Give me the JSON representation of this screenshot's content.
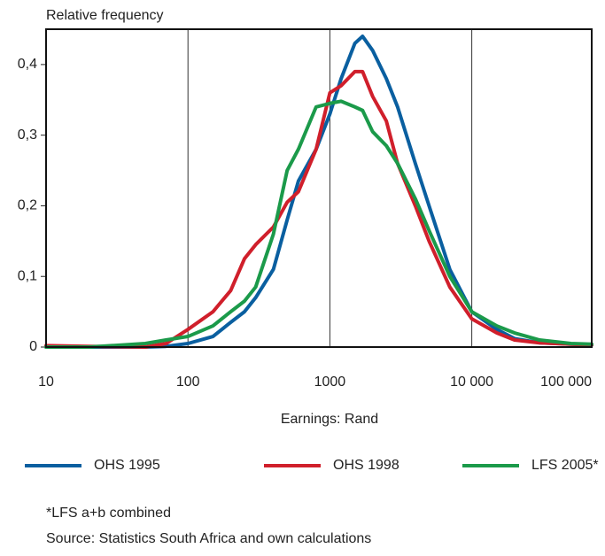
{
  "chart_data": {
    "type": "line",
    "ylabel": "Relative frequency",
    "xlabel": "Earnings: Rand",
    "xscale": "log",
    "grid": true,
    "legend": "bottom",
    "xlim": [
      10,
      70000
    ],
    "xticks": [
      10,
      100,
      1000,
      {
        "value": 10000,
        "label": "10 000"
      },
      {
        "value": 100000,
        "label": "100 000"
      }
    ],
    "ylim": [
      0,
      0.45
    ],
    "yticks": [
      0,
      {
        "value": 0.1,
        "label": "0,1"
      },
      {
        "value": 0.2,
        "label": "0,2"
      },
      {
        "value": 0.3,
        "label": "0,3"
      },
      {
        "value": 0.4,
        "label": "0,4"
      }
    ],
    "x": [
      10,
      20,
      50,
      70,
      100,
      150,
      200,
      250,
      300,
      400,
      500,
      600,
      800,
      1000,
      1200,
      1500,
      1700,
      2000,
      2500,
      3000,
      4000,
      5000,
      7000,
      10000,
      15000,
      20000,
      30000,
      50000,
      70000
    ],
    "series": [
      {
        "name": "OHS 1995",
        "color": "#0a5fa0",
        "values": [
          0,
          0,
          0,
          0.001,
          0.005,
          0.015,
          0.035,
          0.05,
          0.07,
          0.11,
          0.18,
          0.235,
          0.28,
          0.33,
          0.38,
          0.43,
          0.44,
          0.42,
          0.38,
          0.34,
          0.26,
          0.2,
          0.11,
          0.05,
          0.025,
          0.012,
          0.006,
          0.004,
          0.003
        ]
      },
      {
        "name": "OHS 1998",
        "color": "#d01f2b",
        "values": [
          0.002,
          0.001,
          0,
          0.005,
          0.025,
          0.05,
          0.08,
          0.125,
          0.145,
          0.17,
          0.205,
          0.22,
          0.28,
          0.36,
          0.37,
          0.39,
          0.39,
          0.355,
          0.32,
          0.26,
          0.2,
          0.15,
          0.085,
          0.04,
          0.02,
          0.01,
          0.006,
          0.004,
          0.003
        ]
      },
      {
        "name": "LFS 2005*",
        "color": "#1b9a4a",
        "values": [
          0,
          0,
          0.005,
          0.01,
          0.015,
          0.03,
          0.05,
          0.065,
          0.085,
          0.16,
          0.25,
          0.28,
          0.34,
          0.345,
          0.348,
          0.34,
          0.335,
          0.305,
          0.285,
          0.26,
          0.21,
          0.165,
          0.1,
          0.05,
          0.03,
          0.02,
          0.01,
          0.005,
          0.004
        ]
      }
    ],
    "notes": [
      "*LFS a+b combined",
      "Source: Statistics South Africa and own calculations"
    ]
  }
}
